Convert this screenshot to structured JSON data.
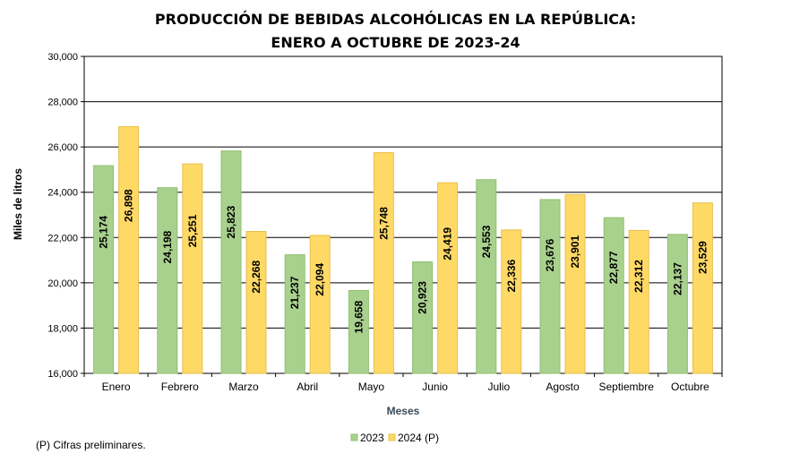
{
  "chart_data": {
    "type": "bar",
    "title_line1": "PRODUCCIÓN  DE BEBIDAS ALCOHÓLICAS EN LA REPÚBLICA:",
    "title_line2": "ENERO A OCTUBRE DE 2023-24",
    "xlabel": "Meses",
    "ylabel": "Miles de litros",
    "ylim": [
      16000,
      30000
    ],
    "yticks": [
      16000,
      18000,
      20000,
      22000,
      24000,
      26000,
      28000,
      30000
    ],
    "ytick_labels": [
      "16,000",
      "18,000",
      "20,000",
      "22,000",
      "24,000",
      "26,000",
      "28,000",
      "30,000"
    ],
    "categories": [
      "Enero",
      "Febrero",
      "Marzo",
      "Abril",
      "Mayo",
      "Junio",
      "Julio",
      "Agosto",
      "Septiembre",
      "Octubre"
    ],
    "series": [
      {
        "name": "2023",
        "color": "#a9d18e",
        "border": "#8fbf6f",
        "values": [
          25174,
          24198,
          25823,
          21237,
          19658,
          20923,
          24553,
          23676,
          22877,
          22137
        ],
        "labels": [
          "25,174",
          "24,198",
          "25,823",
          "21,237",
          "19,658",
          "20,923",
          "24,553",
          "23,676",
          "22,877",
          "22,137"
        ]
      },
      {
        "name": "2024 (P)",
        "color": "#ffd966",
        "border": "#e6c04f",
        "values": [
          26898,
          25251,
          22268,
          22094,
          25748,
          24419,
          22336,
          23901,
          22312,
          23529
        ],
        "labels": [
          "26,898",
          "25,251",
          "22,268",
          "22,094",
          "25,748",
          "24,419",
          "22,336",
          "23,901",
          "22,312",
          "23,529"
        ]
      }
    ],
    "grid": true,
    "legend_position": "bottom-center"
  },
  "footnote": "(P) Cifras  preliminares."
}
